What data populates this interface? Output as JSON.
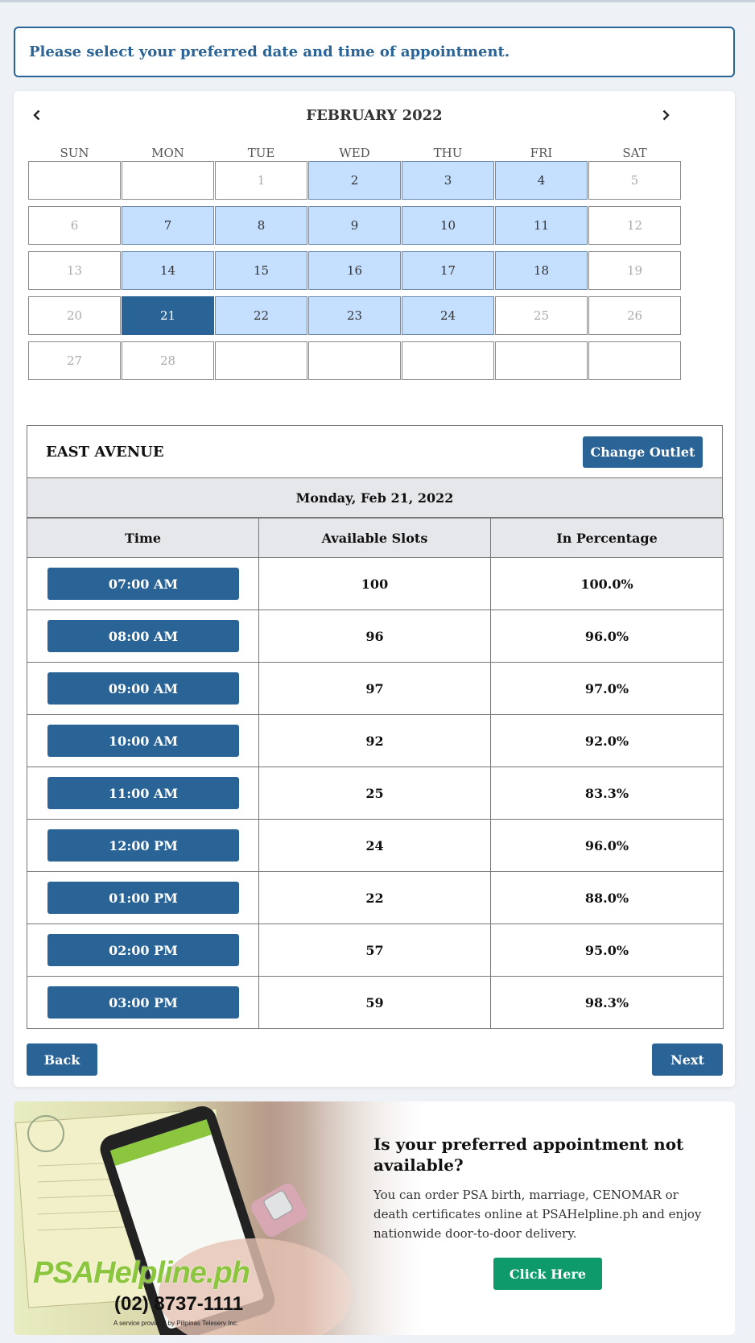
{
  "notice": "Please select your preferred date and time of appointment.",
  "calendar": {
    "month_title": "FEBRUARY 2022",
    "weekdays": [
      "SUN",
      "MON",
      "TUE",
      "WED",
      "THU",
      "FRI",
      "SAT"
    ],
    "weeks": [
      [
        {
          "d": "",
          "s": "empty"
        },
        {
          "d": "",
          "s": "empty"
        },
        {
          "d": "1",
          "s": "off"
        },
        {
          "d": "2",
          "s": "avail"
        },
        {
          "d": "3",
          "s": "avail"
        },
        {
          "d": "4",
          "s": "avail"
        },
        {
          "d": "5",
          "s": "off"
        }
      ],
      [
        {
          "d": "6",
          "s": "off"
        },
        {
          "d": "7",
          "s": "avail"
        },
        {
          "d": "8",
          "s": "avail"
        },
        {
          "d": "9",
          "s": "avail"
        },
        {
          "d": "10",
          "s": "avail"
        },
        {
          "d": "11",
          "s": "avail"
        },
        {
          "d": "12",
          "s": "off"
        }
      ],
      [
        {
          "d": "13",
          "s": "off"
        },
        {
          "d": "14",
          "s": "avail"
        },
        {
          "d": "15",
          "s": "avail"
        },
        {
          "d": "16",
          "s": "avail"
        },
        {
          "d": "17",
          "s": "avail"
        },
        {
          "d": "18",
          "s": "avail"
        },
        {
          "d": "19",
          "s": "off"
        }
      ],
      [
        {
          "d": "20",
          "s": "off"
        },
        {
          "d": "21",
          "s": "selected"
        },
        {
          "d": "22",
          "s": "avail"
        },
        {
          "d": "23",
          "s": "avail"
        },
        {
          "d": "24",
          "s": "avail"
        },
        {
          "d": "25",
          "s": "off"
        },
        {
          "d": "26",
          "s": "off"
        }
      ],
      [
        {
          "d": "27",
          "s": "off"
        },
        {
          "d": "28",
          "s": "off"
        },
        {
          "d": "",
          "s": "empty"
        },
        {
          "d": "",
          "s": "empty"
        },
        {
          "d": "",
          "s": "empty"
        },
        {
          "d": "",
          "s": "empty"
        },
        {
          "d": "",
          "s": "empty"
        }
      ]
    ]
  },
  "slots": {
    "outlet_name": "EAST AVENUE",
    "change_outlet_label": "Change Outlet",
    "selected_date": "Monday, Feb 21, 2022",
    "headers": [
      "Time",
      "Available Slots",
      "In Percentage"
    ],
    "rows": [
      {
        "time": "07:00 AM",
        "slots": "100",
        "pct": "100.0%"
      },
      {
        "time": "08:00 AM",
        "slots": "96",
        "pct": "96.0%"
      },
      {
        "time": "09:00 AM",
        "slots": "97",
        "pct": "97.0%"
      },
      {
        "time": "10:00 AM",
        "slots": "92",
        "pct": "92.0%"
      },
      {
        "time": "11:00 AM",
        "slots": "25",
        "pct": "83.3%"
      },
      {
        "time": "12:00 PM",
        "slots": "24",
        "pct": "96.0%"
      },
      {
        "time": "01:00 PM",
        "slots": "22",
        "pct": "88.0%"
      },
      {
        "time": "02:00 PM",
        "slots": "57",
        "pct": "95.0%"
      },
      {
        "time": "03:00 PM",
        "slots": "59",
        "pct": "98.3%"
      }
    ]
  },
  "nav": {
    "back_label": "Back",
    "next_label": "Next"
  },
  "ad": {
    "title": "Is your preferred appointment not available?",
    "description": "You can order PSA birth, marriage, CENOMAR or death certificates online at PSAHelpline.ph and enjoy nationwide door-to-door delivery.",
    "button_label": "Click Here",
    "logo_text": "PSAHelpline.ph",
    "phone": "(02) 8737-1111",
    "service_note": "A service provided by Pilipinas Teleserv Inc."
  },
  "colors": {
    "primary": "#2a6496",
    "available_day": "#c4dfff",
    "ad_button": "#0e9a6b"
  },
  "icons": {
    "prev": "chevron-left-icon",
    "next": "chevron-right-icon"
  }
}
